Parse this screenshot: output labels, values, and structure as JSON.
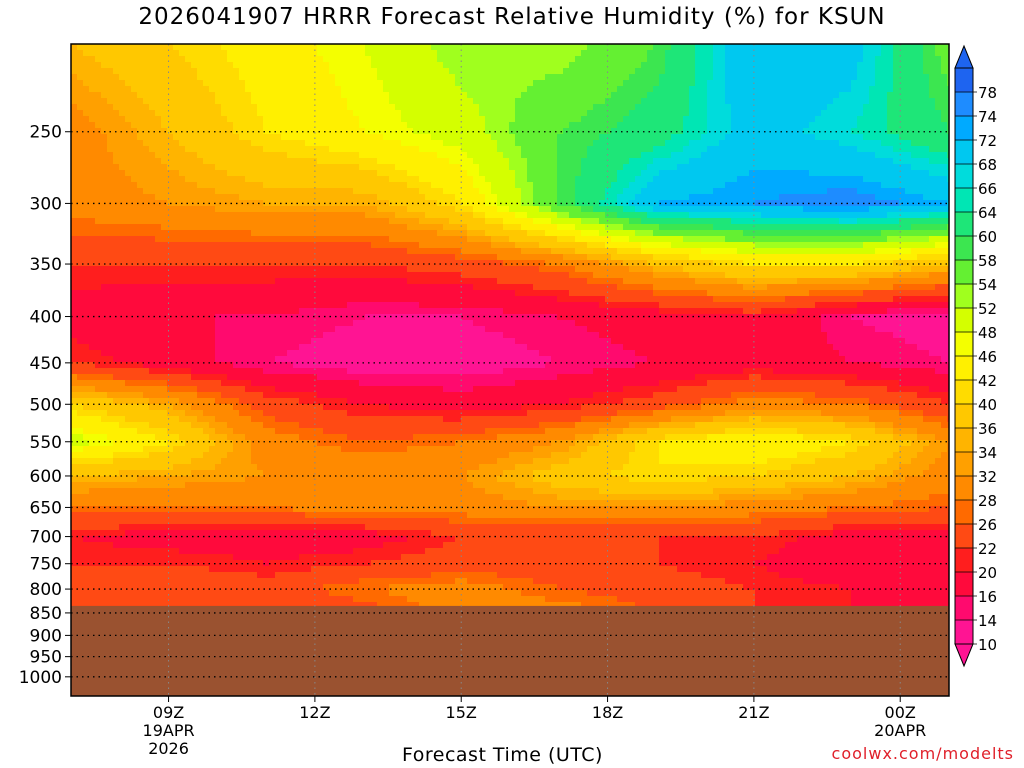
{
  "title": "2026041907 HRRR Forecast Relative Humidity (%) for KSUN",
  "credit": "coolwx.com/modelts",
  "chart_data": {
    "type": "heatmap",
    "title": "2026041907 HRRR Forecast Relative Humidity (%) for KSUN",
    "xlabel": "Forecast Time (UTC)",
    "ylabel": "",
    "x_range_hours": [
      0,
      18
    ],
    "x_ticks": [
      {
        "h": 2,
        "label": "09Z",
        "sub": [
          "19APR",
          "2026"
        ]
      },
      {
        "h": 5,
        "label": "12Z",
        "sub": []
      },
      {
        "h": 8,
        "label": "15Z",
        "sub": []
      },
      {
        "h": 11,
        "label": "18Z",
        "sub": []
      },
      {
        "h": 14,
        "label": "21Z",
        "sub": []
      },
      {
        "h": 17,
        "label": "00Z",
        "sub": [
          "20APR"
        ]
      }
    ],
    "y_scale": "log",
    "y_range": [
      1050,
      200
    ],
    "y_ticks": [
      250,
      300,
      350,
      400,
      450,
      500,
      550,
      600,
      650,
      700,
      750,
      800,
      850,
      900,
      950,
      1000
    ],
    "ground_level_hpa": 835,
    "ground_color": "#9a5230",
    "colorbar": {
      "levels": [
        10,
        14,
        16,
        20,
        22,
        26,
        28,
        32,
        34,
        36,
        40,
        42,
        46,
        48,
        52,
        54,
        58,
        60,
        64,
        66,
        68,
        72,
        74,
        78
      ],
      "colors": [
        "#ff1493",
        "#ff0a6e",
        "#ff0a3c",
        "#ff1e1e",
        "#ff4a14",
        "#ff6a00",
        "#ff8a00",
        "#ffa000",
        "#ffb400",
        "#ffc800",
        "#ffdc00",
        "#fff000",
        "#f4ff00",
        "#d4ff00",
        "#a0ff1e",
        "#64f032",
        "#3ce650",
        "#1ee678",
        "#00e6b4",
        "#00dcdc",
        "#00c8f0",
        "#00aaff",
        "#1e8cff",
        "#1e64f0"
      ]
    },
    "x_hours": [
      0,
      2,
      4,
      6,
      8,
      10,
      12,
      14,
      16,
      18
    ],
    "pressure_levels": [
      850,
      800,
      750,
      700,
      650,
      600,
      550,
      500,
      450,
      400,
      350,
      300,
      250,
      200
    ],
    "values": [
      [
        26,
        24,
        22,
        24,
        30,
        30,
        26,
        22,
        20,
        18
      ],
      [
        26,
        26,
        24,
        28,
        30,
        26,
        24,
        22,
        20,
        18
      ],
      [
        22,
        22,
        20,
        22,
        24,
        24,
        22,
        20,
        16,
        16
      ],
      [
        20,
        18,
        18,
        18,
        22,
        22,
        22,
        22,
        18,
        18
      ],
      [
        28,
        28,
        28,
        30,
        30,
        32,
        32,
        30,
        28,
        26
      ],
      [
        36,
        34,
        32,
        32,
        32,
        38,
        42,
        40,
        36,
        30
      ],
      [
        50,
        42,
        30,
        26,
        28,
        32,
        42,
        46,
        42,
        32
      ],
      [
        40,
        34,
        24,
        20,
        18,
        20,
        24,
        30,
        28,
        22
      ],
      [
        22,
        18,
        14,
        12,
        12,
        14,
        16,
        18,
        16,
        14
      ],
      [
        18,
        16,
        16,
        14,
        14,
        16,
        18,
        20,
        14,
        12
      ],
      [
        22,
        22,
        22,
        22,
        24,
        28,
        36,
        42,
        42,
        36
      ],
      [
        30,
        32,
        34,
        34,
        42,
        58,
        72,
        74,
        76,
        72
      ],
      [
        30,
        36,
        42,
        46,
        50,
        58,
        62,
        70,
        66,
        60
      ],
      [
        36,
        40,
        44,
        48,
        54,
        52,
        58,
        72,
        70,
        56
      ]
    ]
  }
}
